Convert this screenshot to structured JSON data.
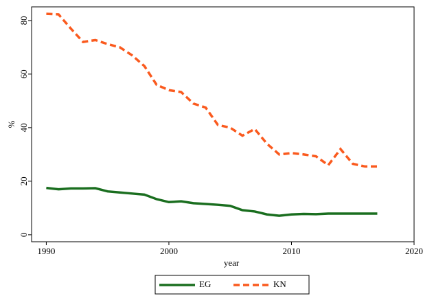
{
  "chart_data": {
    "type": "line",
    "x_label": "year",
    "y_label": "%",
    "x": [
      1990,
      1991,
      1992,
      1993,
      1994,
      1995,
      1996,
      1997,
      1998,
      1999,
      2000,
      2001,
      2002,
      2003,
      2004,
      2005,
      2006,
      2007,
      2008,
      2009,
      2010,
      2011,
      2012,
      2013,
      2014,
      2015,
      2016,
      2017
    ],
    "series": [
      {
        "name": "EG",
        "color": "#1a6e1f",
        "dash": false,
        "values": [
          17.5,
          17,
          17.3,
          17.3,
          17.4,
          16.2,
          15.8,
          15.4,
          15,
          13.3,
          12.2,
          12.5,
          11.8,
          11.5,
          11.2,
          10.8,
          9.2,
          8.7,
          7.6,
          7.1,
          7.6,
          7.8,
          7.7,
          7.9,
          7.9,
          7.9,
          7.9,
          7.9
        ]
      },
      {
        "name": "KN",
        "color": "#fa5a1e",
        "dash": true,
        "values": [
          82.5,
          82.3,
          77,
          72,
          72.7,
          71.2,
          70,
          67,
          63,
          56,
          54,
          53.3,
          49,
          47.5,
          41,
          40,
          37,
          39.5,
          34,
          30,
          30.5,
          30,
          29.3,
          26,
          32,
          26.5,
          25.5,
          25.5
        ]
      }
    ],
    "xlim": [
      1988.8,
      2020
    ],
    "xticks": [
      1990,
      2000,
      2010,
      2020
    ],
    "ylim": [
      -2.6,
      85.1
    ],
    "yticks": [
      0,
      20,
      40,
      60,
      80
    ],
    "legend": "bottom"
  }
}
